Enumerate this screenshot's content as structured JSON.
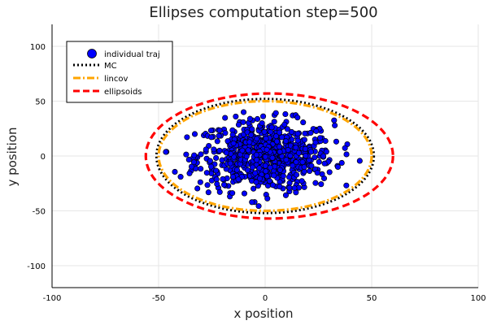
{
  "chart_data": {
    "type": "scatter",
    "title": "Ellipses computation step=500",
    "xlabel": "x position",
    "ylabel": "y position",
    "xlim": [
      -100,
      100
    ],
    "ylim": [
      -120,
      120
    ],
    "xticks": [
      -100,
      -50,
      0,
      50,
      100
    ],
    "yticks": [
      -100,
      -50,
      0,
      50,
      100
    ],
    "xtick_labels": [
      "-100",
      "-50",
      "0",
      "50",
      "100"
    ],
    "ytick_labels": [
      "-100",
      "-50",
      "0",
      "50",
      "100"
    ],
    "grid": true,
    "legend_position": "top-left",
    "series": [
      {
        "name": "individual traj",
        "kind": "points",
        "color": "#0000ff",
        "count": 700,
        "center": [
          0,
          0
        ],
        "spread_sd": [
          16,
          16
        ],
        "range_x": [
          -50,
          50
        ],
        "range_y": [
          -50,
          50
        ]
      },
      {
        "name": "MC",
        "kind": "ellipse",
        "style": "dotted",
        "color": "#000000",
        "center": [
          0,
          0
        ],
        "rx": 51,
        "ry": 52
      },
      {
        "name": "lincov",
        "kind": "ellipse",
        "style": "dashdot",
        "color": "#ffa500",
        "center": [
          0,
          0
        ],
        "rx": 50,
        "ry": 50
      },
      {
        "name": "ellipsoids",
        "kind": "ellipse",
        "style": "dashed",
        "color": "#ff0000",
        "center": [
          2,
          0
        ],
        "rx": 58,
        "ry": 57
      }
    ]
  }
}
